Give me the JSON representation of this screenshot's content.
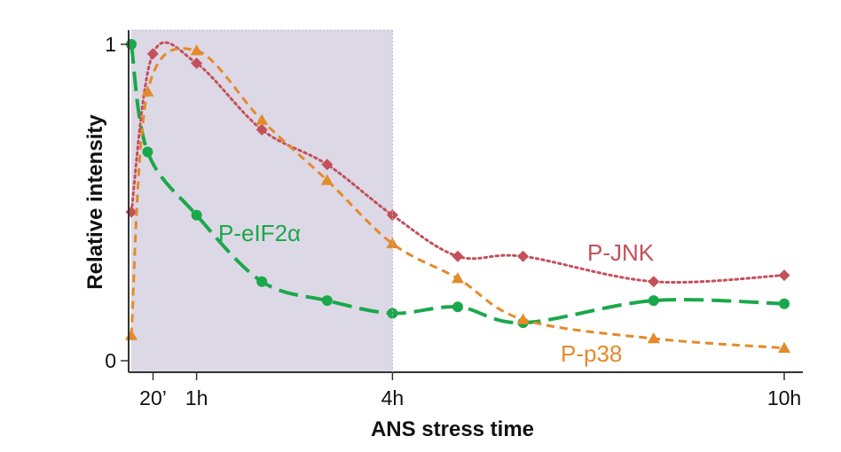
{
  "chart_data": {
    "type": "line",
    "xlabel": "ANS stress time",
    "ylabel": "Relative intensity",
    "xlim": [
      0,
      10
    ],
    "ylim": [
      0,
      1
    ],
    "x_ticks": [
      {
        "value": 0.333,
        "label": "20’"
      },
      {
        "value": 1,
        "label": "1h"
      },
      {
        "value": 4,
        "label": "4h"
      },
      {
        "value": 10,
        "label": "10h"
      }
    ],
    "y_ticks": [
      {
        "value": 0,
        "label": "0"
      },
      {
        "value": 1,
        "label": "1"
      }
    ],
    "shaded_region": {
      "x": [
        0,
        4
      ],
      "color": "#ddd8e6"
    },
    "grid": false,
    "series": [
      {
        "name": "P-eIF2α",
        "color": "#1aa84b",
        "marker": "circle",
        "dash": "long",
        "points": [
          {
            "x": 0.0,
            "y": 1.0
          },
          {
            "x": 0.25,
            "y": 0.66
          },
          {
            "x": 1.0,
            "y": 0.46
          },
          {
            "x": 2.0,
            "y": 0.25
          },
          {
            "x": 3.0,
            "y": 0.19
          },
          {
            "x": 4.0,
            "y": 0.15
          },
          {
            "x": 5.0,
            "y": 0.17
          },
          {
            "x": 6.0,
            "y": 0.12
          },
          {
            "x": 8.0,
            "y": 0.19
          },
          {
            "x": 10.0,
            "y": 0.18
          }
        ]
      },
      {
        "name": "P-JNK",
        "color": "#c4505a",
        "marker": "diamond",
        "dash": "dotted",
        "points": [
          {
            "x": 0.0,
            "y": 0.47
          },
          {
            "x": 0.33,
            "y": 0.97
          },
          {
            "x": 1.0,
            "y": 0.94
          },
          {
            "x": 2.0,
            "y": 0.73
          },
          {
            "x": 3.0,
            "y": 0.62
          },
          {
            "x": 4.0,
            "y": 0.46
          },
          {
            "x": 5.0,
            "y": 0.33
          },
          {
            "x": 6.0,
            "y": 0.33
          },
          {
            "x": 8.0,
            "y": 0.25
          },
          {
            "x": 10.0,
            "y": 0.27
          }
        ]
      },
      {
        "name": "P-p38",
        "color": "#e48a2a",
        "marker": "triangle",
        "dash": "short",
        "points": [
          {
            "x": 0.0,
            "y": 0.08
          },
          {
            "x": 0.25,
            "y": 0.85
          },
          {
            "x": 1.0,
            "y": 0.98
          },
          {
            "x": 2.0,
            "y": 0.76
          },
          {
            "x": 3.0,
            "y": 0.57
          },
          {
            "x": 4.0,
            "y": 0.37
          },
          {
            "x": 5.0,
            "y": 0.26
          },
          {
            "x": 6.0,
            "y": 0.13
          },
          {
            "x": 8.0,
            "y": 0.07
          },
          {
            "x": 10.0,
            "y": 0.04
          }
        ]
      }
    ],
    "annotations": [
      {
        "text": "P-eIF2α",
        "series": "P-eIF2α"
      },
      {
        "text": "P-JNK",
        "series": "P-JNK"
      },
      {
        "text": "P-p38",
        "series": "P-p38"
      }
    ]
  }
}
